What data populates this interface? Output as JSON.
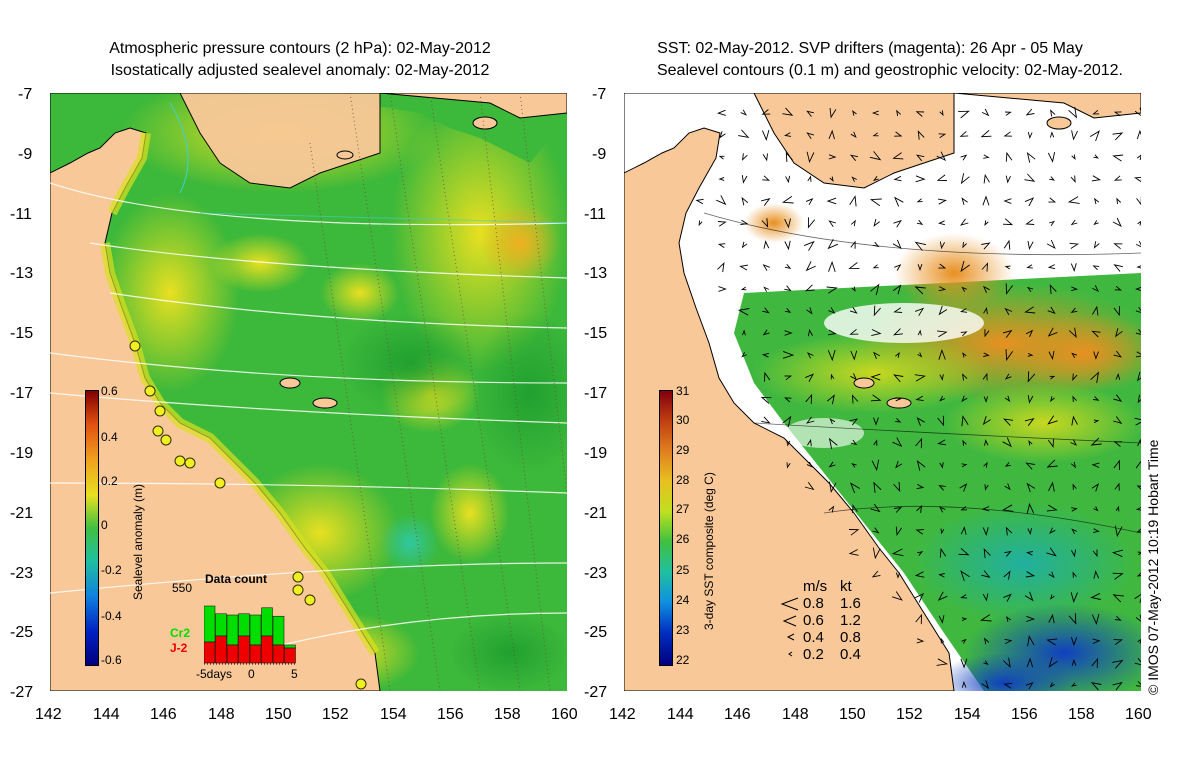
{
  "left_panel": {
    "title_line1": "Atmospheric pressure contours (2 hPa): 02-May-2012",
    "title_line2": "Isostatically adjusted sealevel anomaly: 02-May-2012",
    "colorbar": {
      "label": "Sealevel anomaly (m)",
      "ticks": [
        "0.6",
        "0.4",
        "0.2",
        "0",
        "-0.2",
        "-0.4",
        "-0.6"
      ]
    },
    "data_count": {
      "title": "Data count",
      "max_label": "550",
      "series": [
        {
          "name": "Cr2",
          "color": "#00dd00"
        },
        {
          "name": "J-2",
          "color": "#ee0000"
        }
      ],
      "x_labels": [
        "-5days",
        "0",
        "5"
      ],
      "bars_total": [
        0.95,
        0.82,
        0.8,
        0.82,
        0.8,
        0.92,
        0.78,
        0.3
      ],
      "bars_red": [
        0.35,
        0.45,
        0.3,
        0.45,
        0.3,
        0.45,
        0.3,
        0.25
      ]
    }
  },
  "right_panel": {
    "title_line1": "SST: 02-May-2012. SVP drifters (magenta): 26 Apr - 05 May",
    "title_line2": "Sealevel contours (0.1 m) and geostrophic velocity: 02-May-2012.",
    "colorbar": {
      "label": "3-day SST composite (deg C)",
      "ticks": [
        "31",
        "30",
        "29",
        "28",
        "27",
        "26",
        "25",
        "24",
        "23",
        "22"
      ]
    },
    "velocity_legend": {
      "header_ms": "m/s",
      "header_kt": "kt",
      "rows": [
        {
          "ms": "0.8",
          "kt": "1.6"
        },
        {
          "ms": "0.6",
          "kt": "1.2"
        },
        {
          "ms": "0.4",
          "kt": "0.8"
        },
        {
          "ms": "0.2",
          "kt": "0.4"
        }
      ]
    }
  },
  "axes": {
    "y_ticks": [
      "-7",
      "-9",
      "-11",
      "-13",
      "-15",
      "-17",
      "-19",
      "-21",
      "-23",
      "-25",
      "-27"
    ],
    "x_ticks": [
      "142",
      "144",
      "146",
      "148",
      "150",
      "152",
      "154",
      "156",
      "158",
      "160"
    ]
  },
  "credit": "© IMOS 07-May-2012 10:19 Hobart Time",
  "colors": {
    "land": "#f8c898",
    "ocean_sla": "#3cc030",
    "ocean_sst_warm": "#e8a020"
  }
}
